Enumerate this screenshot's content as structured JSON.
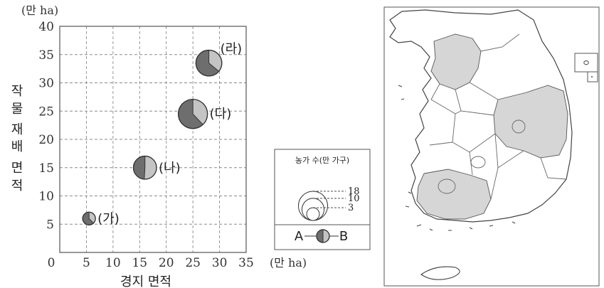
{
  "chart_data": {
    "type": "pie-bubble",
    "y_unit": "(만 ha)",
    "x_unit": "(만 ha)",
    "xlabel": "경지 면적",
    "ylabel": "작물 재배 면적",
    "ylabel_lines": [
      "작",
      "물",
      "재",
      "배",
      "면",
      "적"
    ],
    "xlim": [
      0,
      35
    ],
    "ylim": [
      0,
      40
    ],
    "x_ticks": [
      "0",
      "5",
      "10",
      "15",
      "20",
      "25",
      "30",
      "35"
    ],
    "y_ticks": [
      "5",
      "10",
      "15",
      "20",
      "25",
      "30",
      "35",
      "40"
    ],
    "grid": true,
    "points": [
      {
        "label": "(가)",
        "x": 5.5,
        "y": 6,
        "households": 3,
        "share_a_pct": 62
      },
      {
        "label": "(나)",
        "x": 16,
        "y": 15,
        "households": 11,
        "share_a_pct": 49
      },
      {
        "label": "(다)",
        "x": 25,
        "y": 24.5,
        "households": 18,
        "share_a_pct": 62
      },
      {
        "label": "(라)",
        "x": 28,
        "y": 33.5,
        "households": 14,
        "share_a_pct": 64
      }
    ],
    "legend": {
      "title": "농가 수(만 가구)",
      "sizes": [
        "18",
        "10",
        "3"
      ],
      "size_values": [
        18,
        10,
        3
      ],
      "part_a": "A",
      "part_b": "B"
    }
  },
  "colors": {
    "part_a": "#6e6e6e",
    "part_b": "#c4c4c4",
    "map_highlight": "#d6d6d6",
    "grid": "#8a8a8a"
  }
}
